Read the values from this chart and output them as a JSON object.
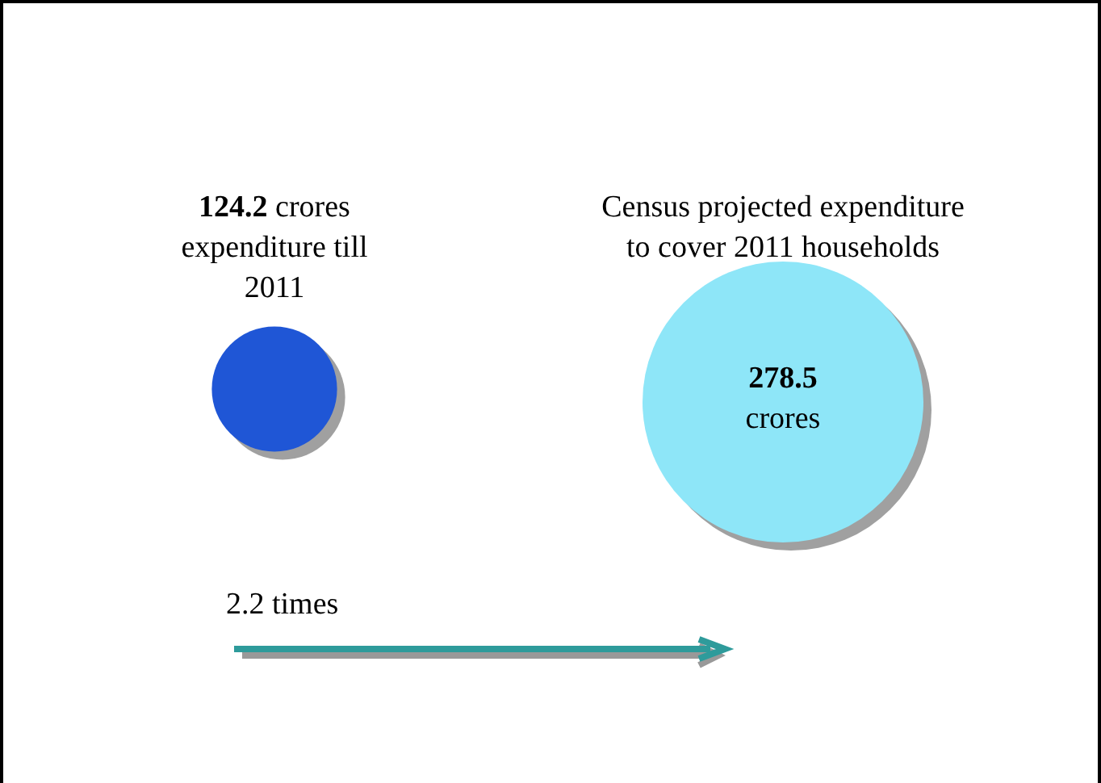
{
  "chart_data": {
    "type": "other",
    "categories": [
      "expenditure till 2011",
      "Census projected expenditure to cover 2011 households"
    ],
    "values": [
      124.2,
      278.5
    ],
    "value_labels": [
      "124.2 crores",
      "278.5 crores"
    ],
    "colors": [
      "#1f56d6",
      "#8ee6f8"
    ],
    "annotations": [
      "2.2 times"
    ]
  }
}
